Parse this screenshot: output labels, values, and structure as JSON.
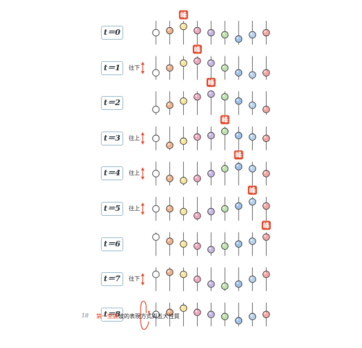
{
  "rows": [
    {
      "label": "t＝0",
      "direction": "",
      "crest_column": 2,
      "offsets": [
        0,
        3,
        9,
        3,
        0,
        -3,
        -9,
        -3,
        0
      ]
    },
    {
      "label": "t＝1",
      "direction": "往下",
      "crest_column": 3,
      "offsets": [
        -7,
        0,
        7,
        10,
        7,
        0,
        -7,
        -10,
        -7
      ]
    },
    {
      "label": "t＝2",
      "direction": "",
      "crest_column": 4,
      "offsets": [
        -9,
        -3,
        3,
        9,
        13,
        9,
        3,
        -3,
        -9
      ]
    },
    {
      "label": "t＝3",
      "direction": "往上",
      "crest_column": 5,
      "offsets": [
        0,
        -10,
        -4,
        2,
        4,
        10,
        4,
        2,
        0
      ]
    },
    {
      "label": "t＝4",
      "direction": "往上",
      "crest_column": 6,
      "offsets": [
        0,
        -7,
        -10,
        -7,
        0,
        7,
        10,
        7,
        0
      ]
    },
    {
      "label": "t＝5",
      "direction": "往上",
      "crest_column": 7,
      "offsets": [
        0,
        0,
        -4,
        -10,
        -4,
        0,
        4,
        10,
        4
      ]
    },
    {
      "label": "t＝6",
      "direction": "",
      "crest_column": 8,
      "offsets": [
        10,
        4,
        0,
        -3,
        -8,
        -3,
        0,
        4,
        10
      ]
    },
    {
      "label": "t＝7",
      "direction": "往下",
      "crest_column": null,
      "offsets": [
        7,
        10,
        7,
        0,
        -7,
        -10,
        -7,
        0,
        7
      ]
    },
    {
      "label": "t＝8",
      "direction": "",
      "crest_column": null,
      "offsets": [
        0,
        3,
        9,
        3,
        0,
        -3,
        -9,
        -3,
        0
      ]
    }
  ],
  "crest_label": "峰",
  "ball_colors": [
    "#ffffff",
    "#f3b48c",
    "#fbe79a",
    "#f2a8c0",
    "#c9b8e6",
    "#bfe3b0",
    "#9fc3ec",
    "#b9d4ef",
    "#f4a7a7"
  ],
  "accent_color": "#e04a2e",
  "footer": {
    "page_number": "18",
    "chapter": "第一堂課",
    "section": "波的表現方式與五大性質"
  }
}
